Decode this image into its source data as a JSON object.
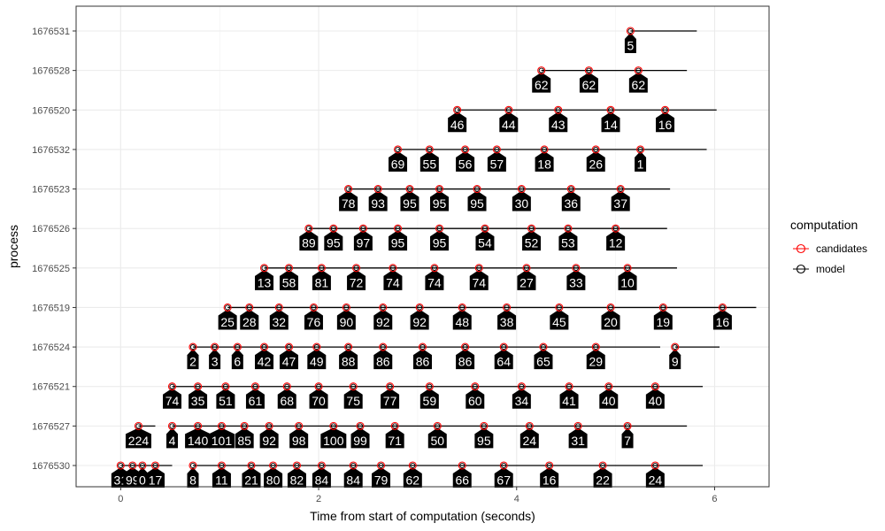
{
  "chart_data": {
    "type": "timeline",
    "xlabel": "Time from start of computation (seconds)",
    "ylabel": "process",
    "xlim": [
      -0.45,
      6.55
    ],
    "x_ticks": [
      0,
      2,
      4,
      6
    ],
    "grid": true,
    "legend": {
      "title": "computation",
      "placement": "right",
      "entries": [
        {
          "label": "candidates",
          "color": "#ff0000"
        },
        {
          "label": "model",
          "color": "#000000"
        }
      ]
    },
    "processes": [
      {
        "id": "1676531",
        "segment": [
          5.15,
          5.82
        ],
        "points": [
          [
            5.15,
            "5"
          ]
        ]
      },
      {
        "id": "1676528",
        "segment": [
          4.25,
          5.72
        ],
        "points": [
          [
            4.25,
            "62"
          ],
          [
            4.73,
            "62"
          ],
          [
            5.23,
            "62"
          ]
        ]
      },
      {
        "id": "1676520",
        "segment": [
          3.4,
          6.02
        ],
        "points": [
          [
            3.4,
            "46"
          ],
          [
            3.92,
            "44"
          ],
          [
            4.42,
            "43"
          ],
          [
            4.95,
            "14"
          ],
          [
            5.5,
            "16"
          ]
        ]
      },
      {
        "id": "1676532",
        "segment": [
          2.8,
          5.92
        ],
        "points": [
          [
            2.8,
            "69"
          ],
          [
            3.12,
            "55"
          ],
          [
            3.48,
            "56"
          ],
          [
            3.8,
            "57"
          ],
          [
            4.28,
            "18"
          ],
          [
            4.8,
            "26"
          ],
          [
            5.25,
            "1"
          ]
        ]
      },
      {
        "id": "1676523",
        "segment": [
          2.3,
          5.55
        ],
        "points": [
          [
            2.3,
            "78"
          ],
          [
            2.6,
            "93"
          ],
          [
            2.92,
            "95"
          ],
          [
            3.22,
            "95"
          ],
          [
            3.6,
            "95"
          ],
          [
            4.05,
            "30"
          ],
          [
            4.55,
            "36"
          ],
          [
            5.05,
            "37"
          ]
        ]
      },
      {
        "id": "1676526",
        "segment": [
          1.9,
          5.52
        ],
        "points": [
          [
            1.9,
            "89"
          ],
          [
            2.15,
            "95"
          ],
          [
            2.45,
            "97"
          ],
          [
            2.8,
            "95"
          ],
          [
            3.22,
            "95"
          ],
          [
            3.68,
            "54"
          ],
          [
            4.15,
            "52"
          ],
          [
            4.52,
            "53"
          ],
          [
            5.0,
            "12"
          ]
        ]
      },
      {
        "id": "1676525",
        "segment": [
          1.45,
          5.62
        ],
        "points": [
          [
            1.45,
            "13"
          ],
          [
            1.7,
            "58"
          ],
          [
            2.03,
            "81"
          ],
          [
            2.38,
            "72"
          ],
          [
            2.75,
            "74"
          ],
          [
            3.17,
            "74"
          ],
          [
            3.62,
            "74"
          ],
          [
            4.1,
            "27"
          ],
          [
            4.6,
            "33"
          ],
          [
            5.12,
            "10"
          ]
        ]
      },
      {
        "id": "1676519",
        "segment": [
          1.08,
          6.42
        ],
        "points": [
          [
            1.08,
            "25"
          ],
          [
            1.3,
            "28"
          ],
          [
            1.6,
            "32"
          ],
          [
            1.95,
            "76"
          ],
          [
            2.28,
            "90"
          ],
          [
            2.65,
            "92"
          ],
          [
            3.02,
            "92"
          ],
          [
            3.45,
            "48"
          ],
          [
            3.9,
            "38"
          ],
          [
            4.43,
            "45"
          ],
          [
            4.95,
            "20"
          ],
          [
            5.48,
            "19"
          ],
          [
            6.08,
            "16"
          ]
        ]
      },
      {
        "id": "1676524",
        "segment": [
          0.73,
          5.45
        ],
        "points": [
          [
            0.73,
            "2"
          ],
          [
            0.95,
            "3"
          ],
          [
            1.18,
            "6"
          ],
          [
            1.45,
            "42"
          ],
          [
            1.7,
            "47"
          ],
          [
            1.98,
            "49"
          ],
          [
            2.3,
            "88"
          ],
          [
            2.65,
            "86"
          ],
          [
            3.05,
            "86"
          ],
          [
            3.48,
            "86"
          ],
          [
            3.87,
            "64"
          ],
          [
            4.27,
            "65"
          ],
          [
            4.8,
            "29"
          ]
        ]
      },
      {
        "id": "1676524",
        "segment": [
          5.6,
          6.05
        ],
        "points": [
          [
            5.6,
            "9"
          ]
        ]
      },
      {
        "id": "1676521",
        "segment": [
          0.52,
          5.88
        ],
        "points": [
          [
            0.52,
            "74"
          ],
          [
            0.78,
            "35"
          ],
          [
            1.06,
            "51"
          ],
          [
            1.36,
            "61"
          ],
          [
            1.68,
            "68"
          ],
          [
            2.0,
            "70"
          ],
          [
            2.35,
            "75"
          ],
          [
            2.72,
            "77"
          ],
          [
            3.12,
            "59"
          ],
          [
            3.58,
            "60"
          ],
          [
            4.05,
            "34"
          ],
          [
            4.53,
            "41"
          ],
          [
            4.93,
            "40"
          ],
          [
            5.4,
            "40"
          ]
        ]
      },
      {
        "id": "1676527",
        "segment": [
          0.18,
          0.35
        ],
        "points": [
          [
            0.18,
            "224"
          ]
        ]
      },
      {
        "id": "1676527",
        "segment": [
          0.52,
          5.72
        ],
        "points": [
          [
            0.52,
            "4"
          ],
          [
            0.78,
            "140"
          ],
          [
            1.02,
            "101"
          ],
          [
            1.25,
            "85"
          ],
          [
            1.5,
            "92"
          ],
          [
            1.8,
            "98"
          ],
          [
            2.15,
            "100"
          ],
          [
            2.42,
            "99"
          ],
          [
            2.77,
            "71"
          ],
          [
            3.2,
            "50"
          ],
          [
            3.67,
            "95"
          ],
          [
            4.13,
            "24"
          ],
          [
            4.62,
            "31"
          ],
          [
            5.12,
            "7"
          ]
        ]
      },
      {
        "id": "1676530",
        "segment": [
          0.0,
          0.52
        ],
        "points": [
          [
            0.0,
            "31"
          ],
          [
            0.12,
            "99"
          ],
          [
            0.22,
            "0"
          ],
          [
            0.35,
            "17"
          ]
        ]
      },
      {
        "id": "1676530",
        "segment": [
          0.73,
          5.88
        ],
        "points": [
          [
            0.73,
            "8"
          ],
          [
            1.02,
            "11"
          ],
          [
            1.32,
            "21"
          ],
          [
            1.54,
            "80"
          ],
          [
            1.78,
            "82"
          ],
          [
            2.03,
            "84"
          ],
          [
            2.35,
            "84"
          ],
          [
            2.63,
            "79"
          ],
          [
            2.95,
            "62"
          ],
          [
            3.45,
            "66"
          ],
          [
            3.87,
            "67"
          ],
          [
            4.33,
            "16"
          ],
          [
            4.87,
            "22"
          ],
          [
            5.4,
            "24"
          ]
        ]
      }
    ]
  }
}
